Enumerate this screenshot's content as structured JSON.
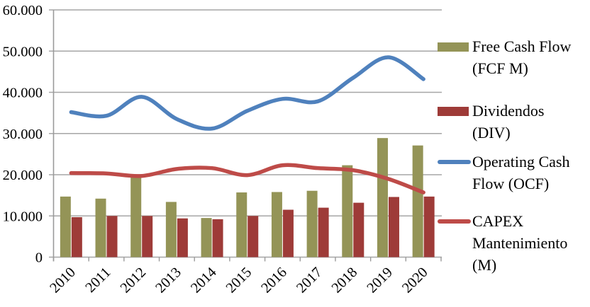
{
  "chart_data": {
    "type": "combo",
    "title": "",
    "xlabel": "",
    "ylabel": "",
    "categories": [
      "2010",
      "2011",
      "2012",
      "2013",
      "2014",
      "2015",
      "2016",
      "2017",
      "2018",
      "2019",
      "2020"
    ],
    "series": [
      {
        "name": "Free Cash Flow (FCF M)",
        "type": "bar",
        "color": "#949457",
        "values": [
          14700,
          14200,
          19400,
          13400,
          9500,
          15700,
          15800,
          16100,
          22300,
          28900,
          27100
        ]
      },
      {
        "name": "Dividendos (DIV)",
        "type": "bar",
        "color": "#9E3B38",
        "values": [
          9700,
          10000,
          10000,
          9400,
          9200,
          10000,
          11500,
          12000,
          13200,
          14600,
          14700
        ]
      },
      {
        "name": "Operating Cash Flow (OCF)",
        "type": "line",
        "color": "#4F81BD",
        "values": [
          35200,
          34300,
          38900,
          33500,
          31200,
          35500,
          38400,
          37800,
          43500,
          48500,
          43200
        ]
      },
      {
        "name": "CAPEX Mantenimiento (M)",
        "type": "line",
        "color": "#BE4B48",
        "values": [
          20400,
          20300,
          19700,
          21400,
          21600,
          19900,
          22300,
          21600,
          21100,
          19000,
          15700
        ]
      }
    ],
    "ylim": [
      0,
      60000
    ],
    "ytick_step": 10000,
    "ytick_labels": [
      "0",
      "10.000",
      "20.000",
      "30.000",
      "40.000",
      "50.000",
      "60.000"
    ],
    "grid": true,
    "legend_position": "right",
    "legend": [
      {
        "series": "Free Cash Flow (FCF M)",
        "swatch": "bar",
        "color": "#949457",
        "label_lines": [
          "Free Cash Flow",
          "(FCF M)"
        ]
      },
      {
        "series": "Dividendos (DIV)",
        "swatch": "bar",
        "color": "#9E3B38",
        "label_lines": [
          "Dividendos",
          "(DIV)"
        ]
      },
      {
        "series": "Operating Cash Flow (OCF)",
        "swatch": "line",
        "color": "#4F81BD",
        "label_lines": [
          "Operating Cash",
          "Flow (OCF)"
        ]
      },
      {
        "series": "CAPEX Mantenimiento (M)",
        "swatch": "line",
        "color": "#BE4B48",
        "label_lines": [
          "CAPEX",
          "Mantenimiento",
          "(M)"
        ]
      }
    ],
    "colors": {
      "gridline": "#A6A6A6",
      "axis": "#9A9A9A",
      "text": "#000000",
      "background": "#FFFFFF"
    }
  }
}
